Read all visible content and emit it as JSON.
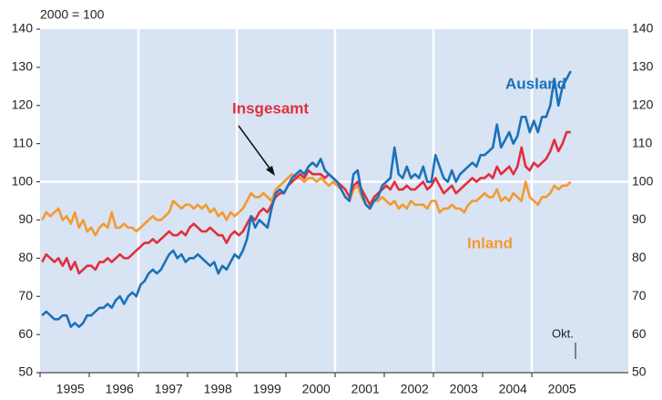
{
  "chart_data": {
    "type": "line",
    "subtitle": "2000 = 100",
    "annotation": "Okt.",
    "categories": [
      null,
      null,
      null,
      null,
      null,
      null,
      "1995",
      null,
      null,
      null,
      null,
      null,
      null,
      null,
      null,
      null,
      null,
      null,
      "1996",
      null,
      null,
      null,
      null,
      null,
      null,
      null,
      null,
      null,
      null,
      null,
      "1997",
      null,
      null,
      null,
      null,
      null,
      null,
      null,
      null,
      null,
      null,
      null,
      "1998",
      null,
      null,
      null,
      null,
      null,
      null,
      null,
      null,
      null,
      null,
      null,
      "1999",
      null,
      null,
      null,
      null,
      null,
      null,
      null,
      null,
      null,
      null,
      null,
      "2000",
      null,
      null,
      null,
      null,
      null,
      null,
      null,
      null,
      null,
      null,
      null,
      "2001",
      null,
      null,
      null,
      null,
      null,
      null,
      null,
      null,
      null,
      null,
      null,
      "2002",
      null,
      null,
      null,
      null,
      null,
      null,
      null,
      null,
      null,
      null,
      null,
      "2003",
      null,
      null,
      null,
      null,
      null,
      null,
      null,
      null,
      null,
      null,
      null,
      "2004",
      null,
      null,
      null,
      null,
      null,
      null,
      null,
      null,
      null,
      null,
      null,
      "2005",
      null,
      null,
      null
    ],
    "series": [
      {
        "name": "Ausland",
        "color": "#1a72b8",
        "values": [
          65,
          66,
          65,
          64,
          64,
          65,
          65,
          62,
          63,
          62,
          63,
          65,
          65,
          66,
          67,
          67,
          68,
          67,
          69,
          70,
          68,
          70,
          71,
          70,
          73,
          74,
          76,
          77,
          76,
          77,
          79,
          81,
          82,
          80,
          81,
          79,
          80,
          80,
          81,
          80,
          79,
          78,
          79,
          76,
          78,
          77,
          79,
          81,
          80,
          82,
          85,
          91,
          88,
          90,
          89,
          88,
          93,
          97,
          98,
          97,
          99,
          101,
          102,
          103,
          102,
          104,
          105,
          104,
          106,
          103,
          102,
          101,
          100,
          98,
          96,
          95,
          102,
          103,
          97,
          94,
          93,
          95,
          96,
          99,
          100,
          101,
          109,
          102,
          101,
          104,
          101,
          102,
          101,
          104,
          100,
          100,
          107,
          104,
          101,
          100,
          103,
          100,
          102,
          103,
          104,
          105,
          104,
          107,
          107,
          108,
          109,
          115,
          109,
          111,
          113,
          110,
          112,
          117,
          117,
          113,
          116,
          113,
          117,
          117,
          120,
          127,
          120,
          125,
          127,
          129
        ]
      },
      {
        "name": "Insgesamt",
        "color": "#e0303c",
        "values": [
          79,
          81,
          80,
          79,
          80,
          78,
          80,
          77,
          79,
          76,
          77,
          78,
          78,
          77,
          79,
          79,
          80,
          79,
          80,
          81,
          80,
          80,
          81,
          82,
          83,
          84,
          84,
          85,
          84,
          85,
          86,
          87,
          86,
          86,
          87,
          86,
          88,
          89,
          88,
          87,
          87,
          88,
          87,
          86,
          86,
          84,
          86,
          87,
          86,
          87,
          89,
          91,
          90,
          92,
          93,
          92,
          94,
          96,
          97,
          97,
          99,
          100,
          101,
          102,
          101,
          103,
          102,
          102,
          102,
          101,
          102,
          101,
          100,
          99,
          98,
          96,
          99,
          100,
          98,
          96,
          94,
          96,
          97,
          98,
          99,
          98,
          100,
          98,
          98,
          99,
          98,
          98,
          99,
          100,
          98,
          99,
          101,
          99,
          97,
          98,
          99,
          97,
          98,
          99,
          100,
          101,
          100,
          101,
          101,
          102,
          101,
          104,
          102,
          103,
          104,
          102,
          104,
          109,
          104,
          103,
          105,
          104,
          105,
          106,
          108,
          111,
          108,
          110,
          113,
          113
        ]
      },
      {
        "name": "Inland",
        "color": "#f39a2f",
        "values": [
          90,
          92,
          91,
          92,
          93,
          90,
          91,
          89,
          92,
          88,
          90,
          87,
          88,
          86,
          88,
          89,
          88,
          92,
          88,
          88,
          89,
          88,
          88,
          87,
          88,
          89,
          90,
          91,
          90,
          90,
          91,
          92,
          95,
          94,
          93,
          94,
          94,
          93,
          94,
          93,
          94,
          92,
          93,
          91,
          92,
          90,
          92,
          91,
          92,
          93,
          95,
          97,
          96,
          96,
          97,
          96,
          95,
          98,
          99,
          100,
          101,
          102,
          101,
          101,
          100,
          101,
          101,
          100,
          101,
          100,
          99,
          100,
          99,
          98,
          96,
          95,
          98,
          99,
          96,
          94,
          93,
          95,
          95,
          96,
          95,
          94,
          95,
          93,
          94,
          93,
          95,
          94,
          94,
          94,
          93,
          95,
          95,
          92,
          93,
          93,
          94,
          93,
          93,
          92,
          94,
          95,
          95,
          96,
          97,
          96,
          96,
          98,
          95,
          96,
          95,
          97,
          96,
          95,
          100,
          96,
          95,
          94,
          96,
          96,
          97,
          99,
          98,
          99,
          99,
          100
        ]
      }
    ],
    "ylim": [
      50,
      140
    ],
    "yticks": [
      50,
      60,
      70,
      80,
      90,
      100,
      110,
      120,
      130,
      140
    ],
    "y2lim": [
      50,
      140
    ],
    "y2ticks": [
      50,
      60,
      70,
      80,
      90,
      100,
      110,
      120,
      130,
      140
    ],
    "hline": 100
  }
}
